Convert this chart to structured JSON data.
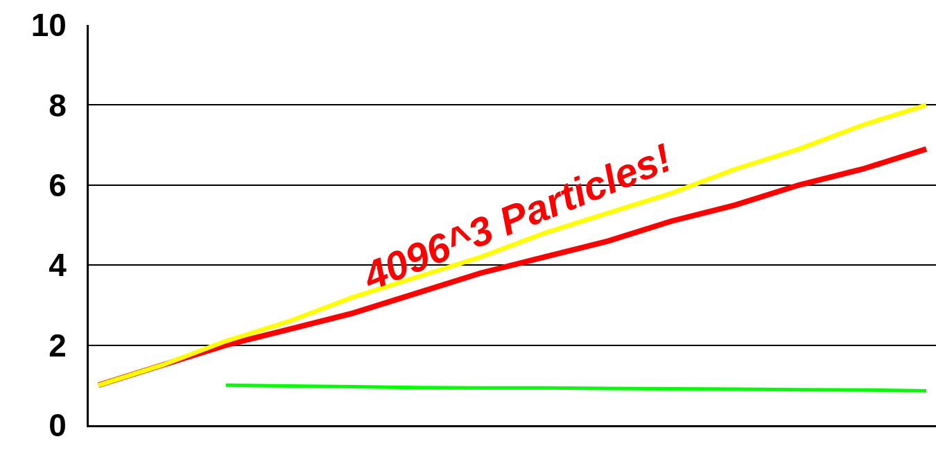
{
  "chart_data": {
    "type": "line",
    "categories": [
      null,
      null,
      null,
      null,
      null,
      null,
      null,
      null,
      null,
      null,
      null,
      null,
      null,
      null
    ],
    "series": [
      {
        "color": "#ff0000",
        "values": [
          1.0,
          1.5,
          2.0,
          2.4,
          2.8,
          3.3,
          3.8,
          4.2,
          4.6,
          5.1,
          5.5,
          6.0,
          6.4,
          6.9
        ]
      },
      {
        "color": "#ffff00",
        "values": [
          1.0,
          1.5,
          2.1,
          2.6,
          3.2,
          3.7,
          4.2,
          4.8,
          5.3,
          5.8,
          6.4,
          6.9,
          7.5,
          8.0
        ]
      },
      {
        "color": "#00ff00",
        "values": [
          null,
          null,
          1.0,
          0.98,
          0.96,
          0.94,
          0.93,
          0.93,
          0.92,
          0.91,
          0.9,
          0.89,
          0.88,
          0.86
        ]
      }
    ],
    "ylim": [
      0,
      10
    ],
    "yticks": [
      0,
      2,
      4,
      6,
      8,
      10
    ],
    "grid": "y",
    "marker": "none",
    "line_style": "solid",
    "annotations": [
      "4096^3 Particles!"
    ]
  }
}
